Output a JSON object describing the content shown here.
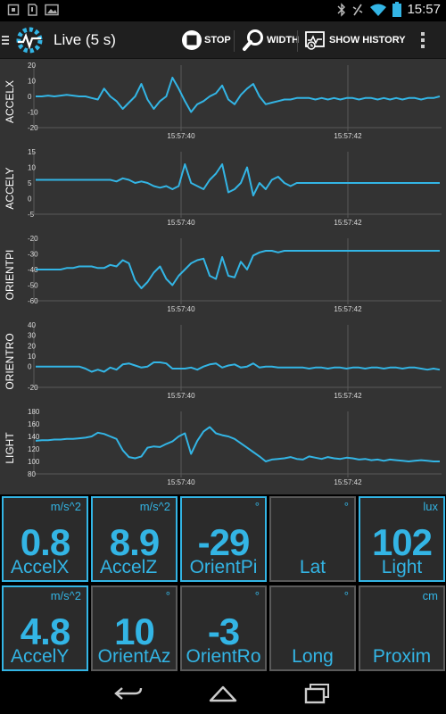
{
  "status_bar": {
    "time": "15:57",
    "left_icons": [
      "screen-icon",
      "sd-card-icon",
      "image-icon"
    ],
    "right_icons": [
      "bluetooth-icon",
      "vibrate-icon",
      "wifi-icon",
      "battery-icon"
    ]
  },
  "action_bar": {
    "title": "Live (5 s)",
    "stop_label": "STOP",
    "width_label": "WIDTH",
    "history_label": "SHOW HISTORY"
  },
  "charts": [
    {
      "label": "ACCELX",
      "ticks": [
        "20",
        "10",
        "0",
        "-10",
        "-20"
      ],
      "tick_values": [
        20,
        10,
        0,
        -10,
        -20
      ],
      "ylim": [
        -20,
        20
      ],
      "x_labels": [
        "15:57:40",
        "15:57:42"
      ],
      "values": [
        0,
        0,
        0.5,
        0,
        0.5,
        1,
        0.5,
        0,
        0,
        -1,
        -2,
        5,
        0,
        -3,
        -8,
        -4,
        0,
        8,
        -2,
        -8,
        -3,
        0,
        12,
        5,
        -3,
        -10,
        -5,
        -3,
        0,
        2,
        7,
        -2,
        -5,
        1,
        5,
        8,
        0,
        -5,
        -4,
        -3,
        -2,
        -2,
        -1,
        -1,
        -1,
        -2,
        -1,
        -2,
        -1,
        -2,
        -1,
        -1,
        -2,
        -1,
        -1,
        -2,
        -1,
        -2,
        -1,
        -2,
        -1,
        -1,
        -2,
        -1,
        -1,
        0
      ]
    },
    {
      "label": "ACCELY",
      "ticks": [
        "15",
        "10",
        "5",
        "0",
        "-5"
      ],
      "tick_values": [
        15,
        10,
        5,
        0,
        -5
      ],
      "ylim": [
        -5,
        15
      ],
      "x_labels": [
        "15:57:40",
        "15:57:42"
      ],
      "values": [
        6,
        6,
        6,
        6,
        6,
        6,
        6,
        6,
        6,
        6,
        6,
        6,
        6,
        5.5,
        6.5,
        6,
        5,
        5.5,
        5,
        4,
        3.5,
        4,
        3,
        4,
        11,
        5,
        4,
        3,
        6,
        8,
        11,
        2,
        3,
        5,
        10,
        1,
        5,
        3,
        6,
        7,
        5,
        4,
        5,
        5,
        5,
        5,
        5,
        5,
        5,
        5,
        5,
        5,
        5,
        5,
        5,
        5,
        5,
        5,
        5,
        5,
        5,
        5,
        5,
        5,
        5,
        5
      ]
    },
    {
      "label": "ORIENTPI",
      "ticks": [
        "-20",
        "-30",
        "-40",
        "-50",
        "-60"
      ],
      "tick_values": [
        -20,
        -30,
        -40,
        -50,
        -60
      ],
      "ylim": [
        -60,
        -20
      ],
      "x_labels": [
        "15:57:40",
        "15:57:42"
      ],
      "values": [
        -40,
        -40,
        -40,
        -40,
        -40,
        -39,
        -39,
        -38,
        -38,
        -38,
        -39,
        -39,
        -37,
        -38,
        -34,
        -36,
        -47,
        -52,
        -48,
        -42,
        -38,
        -46,
        -50,
        -44,
        -40,
        -36,
        -34,
        -33,
        -44,
        -46,
        -32,
        -44,
        -45,
        -35,
        -40,
        -31,
        -29,
        -28,
        -28,
        -29,
        -28,
        -28,
        -28,
        -28,
        -28,
        -28,
        -28,
        -28,
        -28,
        -28,
        -28,
        -28,
        -28,
        -28,
        -28,
        -28,
        -28,
        -28,
        -28,
        -28,
        -28,
        -28,
        -28,
        -28,
        -28,
        -28
      ]
    },
    {
      "label": "ORIENTRO",
      "ticks": [
        "40",
        "30",
        "20",
        "10",
        "0",
        "-20"
      ],
      "tick_values": [
        40,
        30,
        20,
        10,
        0,
        -20
      ],
      "ylim": [
        -20,
        40
      ],
      "x_labels": [
        "15:57:40",
        "15:57:42"
      ],
      "values": [
        0,
        0,
        0,
        0,
        0,
        0,
        0,
        0,
        -2,
        -5,
        -3,
        -5,
        -1,
        -3,
        2,
        3,
        1,
        -1,
        0,
        4,
        4,
        3,
        -2,
        -2,
        -2,
        -1,
        -3,
        0,
        2,
        3,
        -1,
        1,
        2,
        -1,
        0,
        3,
        -1,
        0,
        0,
        -1,
        -1,
        -1,
        -1,
        -1,
        -2,
        -1,
        -1,
        -2,
        -1,
        -1,
        -2,
        -1,
        -1,
        -2,
        -1,
        -1,
        -2,
        -1,
        -1,
        -2,
        -1,
        -1,
        -2,
        -3,
        -2,
        -3
      ]
    },
    {
      "label": "LIGHT",
      "ticks": [
        "180",
        "160",
        "140",
        "120",
        "100",
        "80"
      ],
      "tick_values": [
        180,
        160,
        140,
        120,
        100,
        80
      ],
      "ylim": [
        80,
        180
      ],
      "x_labels": [
        "15:57:40",
        "15:57:42"
      ],
      "values": [
        133,
        134,
        134,
        135,
        135,
        136,
        136,
        137,
        138,
        140,
        146,
        144,
        140,
        136,
        118,
        107,
        105,
        108,
        122,
        124,
        123,
        128,
        132,
        140,
        145,
        112,
        133,
        148,
        155,
        145,
        142,
        140,
        136,
        129,
        122,
        115,
        108,
        100,
        103,
        104,
        105,
        107,
        104,
        103,
        108,
        106,
        104,
        107,
        105,
        104,
        106,
        105,
        103,
        104,
        102,
        103,
        101,
        103,
        102,
        101,
        100,
        101,
        102,
        101,
        100,
        100
      ]
    }
  ],
  "tiles": [
    {
      "unit": "m/s^2",
      "value": "0.8",
      "name": "AccelX",
      "active": true
    },
    {
      "unit": "m/s^2",
      "value": "8.9",
      "name": "AccelZ",
      "active": true
    },
    {
      "unit": "°",
      "value": "-29",
      "name": "OrientPi",
      "active": true
    },
    {
      "unit": "°",
      "value": "",
      "name": "Lat",
      "active": false
    },
    {
      "unit": "lux",
      "value": "102",
      "name": "Light",
      "active": true
    },
    {
      "unit": "m/s^2",
      "value": "4.8",
      "name": "AccelY",
      "active": true
    },
    {
      "unit": "°",
      "value": "10",
      "name": "OrientAz",
      "active": false
    },
    {
      "unit": "°",
      "value": "-3",
      "name": "OrientRo",
      "active": false
    },
    {
      "unit": "°",
      "value": "",
      "name": "Long",
      "active": false
    },
    {
      "unit": "cm",
      "value": "",
      "name": "Proxim",
      "active": false
    }
  ],
  "colors": {
    "accent": "#33b5e5",
    "chart_bg": "#333333",
    "tile_bg": "#2b2b2b",
    "grid": "#5a5a5a"
  },
  "nav_bar": {
    "icons": [
      "back-icon",
      "home-icon",
      "recent-apps-icon"
    ]
  }
}
